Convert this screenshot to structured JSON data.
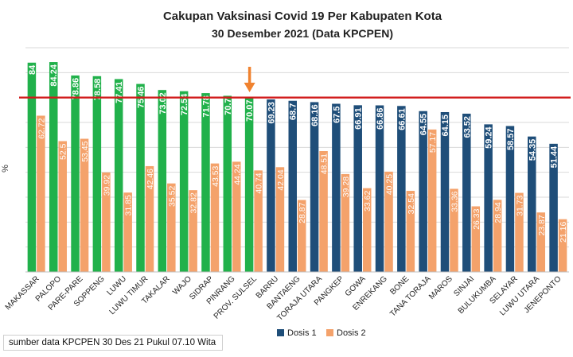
{
  "chart_data": {
    "type": "bar",
    "title": "Cakupan Vaksinasi Covid 19 Per Kabupaten Kota",
    "subtitle": "30 Desember 2021 (Data KPCPEN)",
    "ylabel": "%",
    "xlabel": "",
    "ylim": [
      0,
      90
    ],
    "grid": true,
    "legend": "bottom-right",
    "reference_line": 70,
    "categories": [
      "MAKASSAR",
      "PALOPO",
      "PARE-PARE",
      "SOPPENG",
      "LUWU",
      "LUWU TIMUR",
      "TAKALAR",
      "WAJO",
      "SIDRAP",
      "PINRANG",
      "PROV. SULSEL",
      "BARRU",
      "BANTAENG",
      "TORAJA UTARA",
      "PANGKEP",
      "GOWA",
      "ENREKANG",
      "BONE",
      "TANA TORAJA",
      "MAROS",
      "SINJAI",
      "BULUKUMBA",
      "SELAYAR",
      "LUWU UTARA",
      "JENEPONTO"
    ],
    "series": [
      {
        "name": "Dosis 1",
        "values": [
          84,
          84.24,
          78.86,
          78.58,
          77.41,
          75.46,
          73.02,
          72.54,
          71.78,
          70.7,
          70.07,
          69.23,
          68.7,
          68.16,
          67.5,
          66.91,
          66.86,
          66.61,
          64.55,
          64.15,
          63.52,
          59.24,
          58.57,
          54.35,
          51.44
        ],
        "labels": [
          "84",
          "84.24",
          "78.86",
          "78.58",
          "77.41",
          "75.46",
          "73.02",
          "72.54",
          "71.78",
          "70.7",
          "70.07",
          "69.23",
          "68.7",
          "68.16",
          "67.5",
          "66.91",
          "66.86",
          "66.61",
          "64.55",
          "64.15",
          "63.52",
          "59.24",
          "58.57",
          "54.35",
          "51.44"
        ]
      },
      {
        "name": "Dosis 2",
        "values": [
          62.72,
          52.5,
          53.45,
          39.92,
          31.85,
          42.46,
          35.52,
          32.82,
          43.53,
          44.24,
          40.74,
          42.04,
          28.87,
          48.51,
          39.28,
          33.62,
          40.25,
          32.54,
          57.17,
          33.36,
          26.33,
          28.94,
          31.73,
          23.87,
          21.16
        ],
        "labels": [
          "62.72",
          "52.5",
          "53.45",
          "39.92",
          "31.85",
          "42.46",
          "35.52",
          "32.82",
          "43.53",
          "44.24",
          "40.74",
          "42.04",
          "28.87",
          "48.51",
          "39.28",
          "33.62",
          "40.25",
          "32.54",
          "57.17",
          "33.36",
          "26.33",
          "28.94",
          "31.73",
          "23.87",
          "21.16"
        ]
      }
    ],
    "colors": {
      "dosis1_above": "#21b14b",
      "dosis1_below": "#1f4e79",
      "dosis2": "#f4a26b",
      "reference_line": "#d11a1a",
      "arrow": "#f0822f",
      "grid": "#d9d9d9"
    },
    "annotation_icon": "down-arrow-icon"
  },
  "source_note": "sumber data KPCPEN 30 Des 21 Pukul 07.10 Wita"
}
